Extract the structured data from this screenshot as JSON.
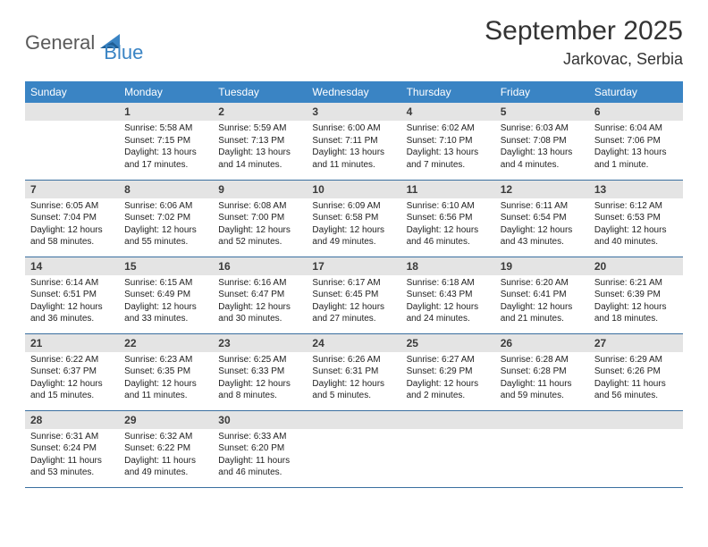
{
  "logo": {
    "text1": "General",
    "text2": "Blue"
  },
  "title": "September 2025",
  "location": "Jarkovac, Serbia",
  "colors": {
    "header_bg": "#3a84c4",
    "header_fg": "#ffffff",
    "daynum_bg": "#e4e4e4",
    "daynum_fg": "#3a3a3a",
    "text": "#222222",
    "rule": "#3a6fa0",
    "logo_gray": "#5a5a5a",
    "logo_blue": "#3a84c4"
  },
  "dow": [
    "Sunday",
    "Monday",
    "Tuesday",
    "Wednesday",
    "Thursday",
    "Friday",
    "Saturday"
  ],
  "weeks": [
    [
      null,
      {
        "n": "1",
        "sr": "5:58 AM",
        "ss": "7:15 PM",
        "dl": "13 hours and 17 minutes."
      },
      {
        "n": "2",
        "sr": "5:59 AM",
        "ss": "7:13 PM",
        "dl": "13 hours and 14 minutes."
      },
      {
        "n": "3",
        "sr": "6:00 AM",
        "ss": "7:11 PM",
        "dl": "13 hours and 11 minutes."
      },
      {
        "n": "4",
        "sr": "6:02 AM",
        "ss": "7:10 PM",
        "dl": "13 hours and 7 minutes."
      },
      {
        "n": "5",
        "sr": "6:03 AM",
        "ss": "7:08 PM",
        "dl": "13 hours and 4 minutes."
      },
      {
        "n": "6",
        "sr": "6:04 AM",
        "ss": "7:06 PM",
        "dl": "13 hours and 1 minute."
      }
    ],
    [
      {
        "n": "7",
        "sr": "6:05 AM",
        "ss": "7:04 PM",
        "dl": "12 hours and 58 minutes."
      },
      {
        "n": "8",
        "sr": "6:06 AM",
        "ss": "7:02 PM",
        "dl": "12 hours and 55 minutes."
      },
      {
        "n": "9",
        "sr": "6:08 AM",
        "ss": "7:00 PM",
        "dl": "12 hours and 52 minutes."
      },
      {
        "n": "10",
        "sr": "6:09 AM",
        "ss": "6:58 PM",
        "dl": "12 hours and 49 minutes."
      },
      {
        "n": "11",
        "sr": "6:10 AM",
        "ss": "6:56 PM",
        "dl": "12 hours and 46 minutes."
      },
      {
        "n": "12",
        "sr": "6:11 AM",
        "ss": "6:54 PM",
        "dl": "12 hours and 43 minutes."
      },
      {
        "n": "13",
        "sr": "6:12 AM",
        "ss": "6:53 PM",
        "dl": "12 hours and 40 minutes."
      }
    ],
    [
      {
        "n": "14",
        "sr": "6:14 AM",
        "ss": "6:51 PM",
        "dl": "12 hours and 36 minutes."
      },
      {
        "n": "15",
        "sr": "6:15 AM",
        "ss": "6:49 PM",
        "dl": "12 hours and 33 minutes."
      },
      {
        "n": "16",
        "sr": "6:16 AM",
        "ss": "6:47 PM",
        "dl": "12 hours and 30 minutes."
      },
      {
        "n": "17",
        "sr": "6:17 AM",
        "ss": "6:45 PM",
        "dl": "12 hours and 27 minutes."
      },
      {
        "n": "18",
        "sr": "6:18 AM",
        "ss": "6:43 PM",
        "dl": "12 hours and 24 minutes."
      },
      {
        "n": "19",
        "sr": "6:20 AM",
        "ss": "6:41 PM",
        "dl": "12 hours and 21 minutes."
      },
      {
        "n": "20",
        "sr": "6:21 AM",
        "ss": "6:39 PM",
        "dl": "12 hours and 18 minutes."
      }
    ],
    [
      {
        "n": "21",
        "sr": "6:22 AM",
        "ss": "6:37 PM",
        "dl": "12 hours and 15 minutes."
      },
      {
        "n": "22",
        "sr": "6:23 AM",
        "ss": "6:35 PM",
        "dl": "12 hours and 11 minutes."
      },
      {
        "n": "23",
        "sr": "6:25 AM",
        "ss": "6:33 PM",
        "dl": "12 hours and 8 minutes."
      },
      {
        "n": "24",
        "sr": "6:26 AM",
        "ss": "6:31 PM",
        "dl": "12 hours and 5 minutes."
      },
      {
        "n": "25",
        "sr": "6:27 AM",
        "ss": "6:29 PM",
        "dl": "12 hours and 2 minutes."
      },
      {
        "n": "26",
        "sr": "6:28 AM",
        "ss": "6:28 PM",
        "dl": "11 hours and 59 minutes."
      },
      {
        "n": "27",
        "sr": "6:29 AM",
        "ss": "6:26 PM",
        "dl": "11 hours and 56 minutes."
      }
    ],
    [
      {
        "n": "28",
        "sr": "6:31 AM",
        "ss": "6:24 PM",
        "dl": "11 hours and 53 minutes."
      },
      {
        "n": "29",
        "sr": "6:32 AM",
        "ss": "6:22 PM",
        "dl": "11 hours and 49 minutes."
      },
      {
        "n": "30",
        "sr": "6:33 AM",
        "ss": "6:20 PM",
        "dl": "11 hours and 46 minutes."
      },
      null,
      null,
      null,
      null
    ]
  ],
  "labels": {
    "sunrise": "Sunrise:",
    "sunset": "Sunset:",
    "daylight": "Daylight:"
  }
}
